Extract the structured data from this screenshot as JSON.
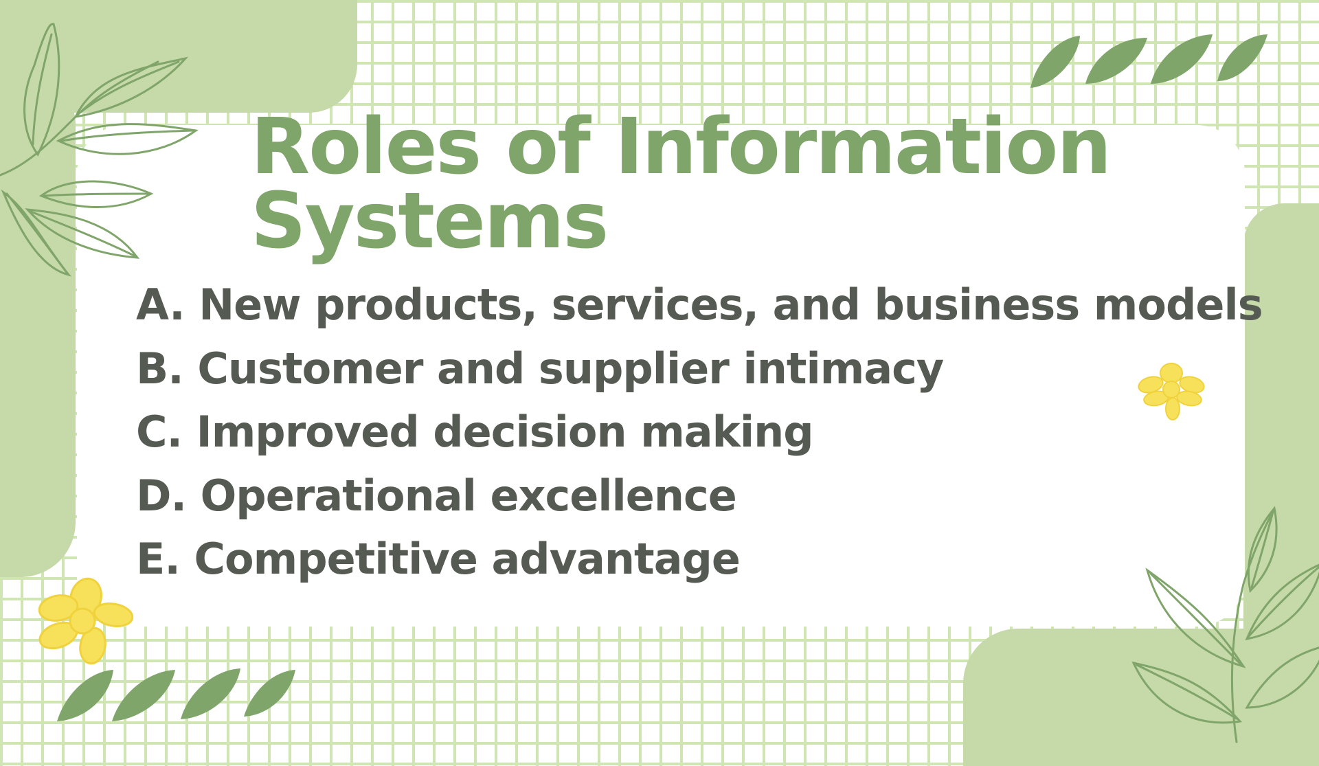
{
  "slide": {
    "title_line_1": "Roles of Information",
    "title_line_2": "Systems",
    "items": [
      "A. New products, services, and business models",
      "B. Customer and supplier intimacy",
      "C. Improved decision making",
      "D. Operational excellence",
      "E. Competitive advantage"
    ]
  },
  "colors": {
    "title": "#7fa56a",
    "text": "#555a52",
    "blob": "#c6d9a8",
    "leaf_solid": "#7fa56a",
    "leaf_outline": "#7fa56a",
    "flower": "#f7e15a",
    "grid": "#cfe6b2"
  },
  "decor": {
    "leaf_branch": "leaf-branch-icon",
    "flower": "flower-icon",
    "leaf_stroke": "leaf-stroke-icon"
  }
}
